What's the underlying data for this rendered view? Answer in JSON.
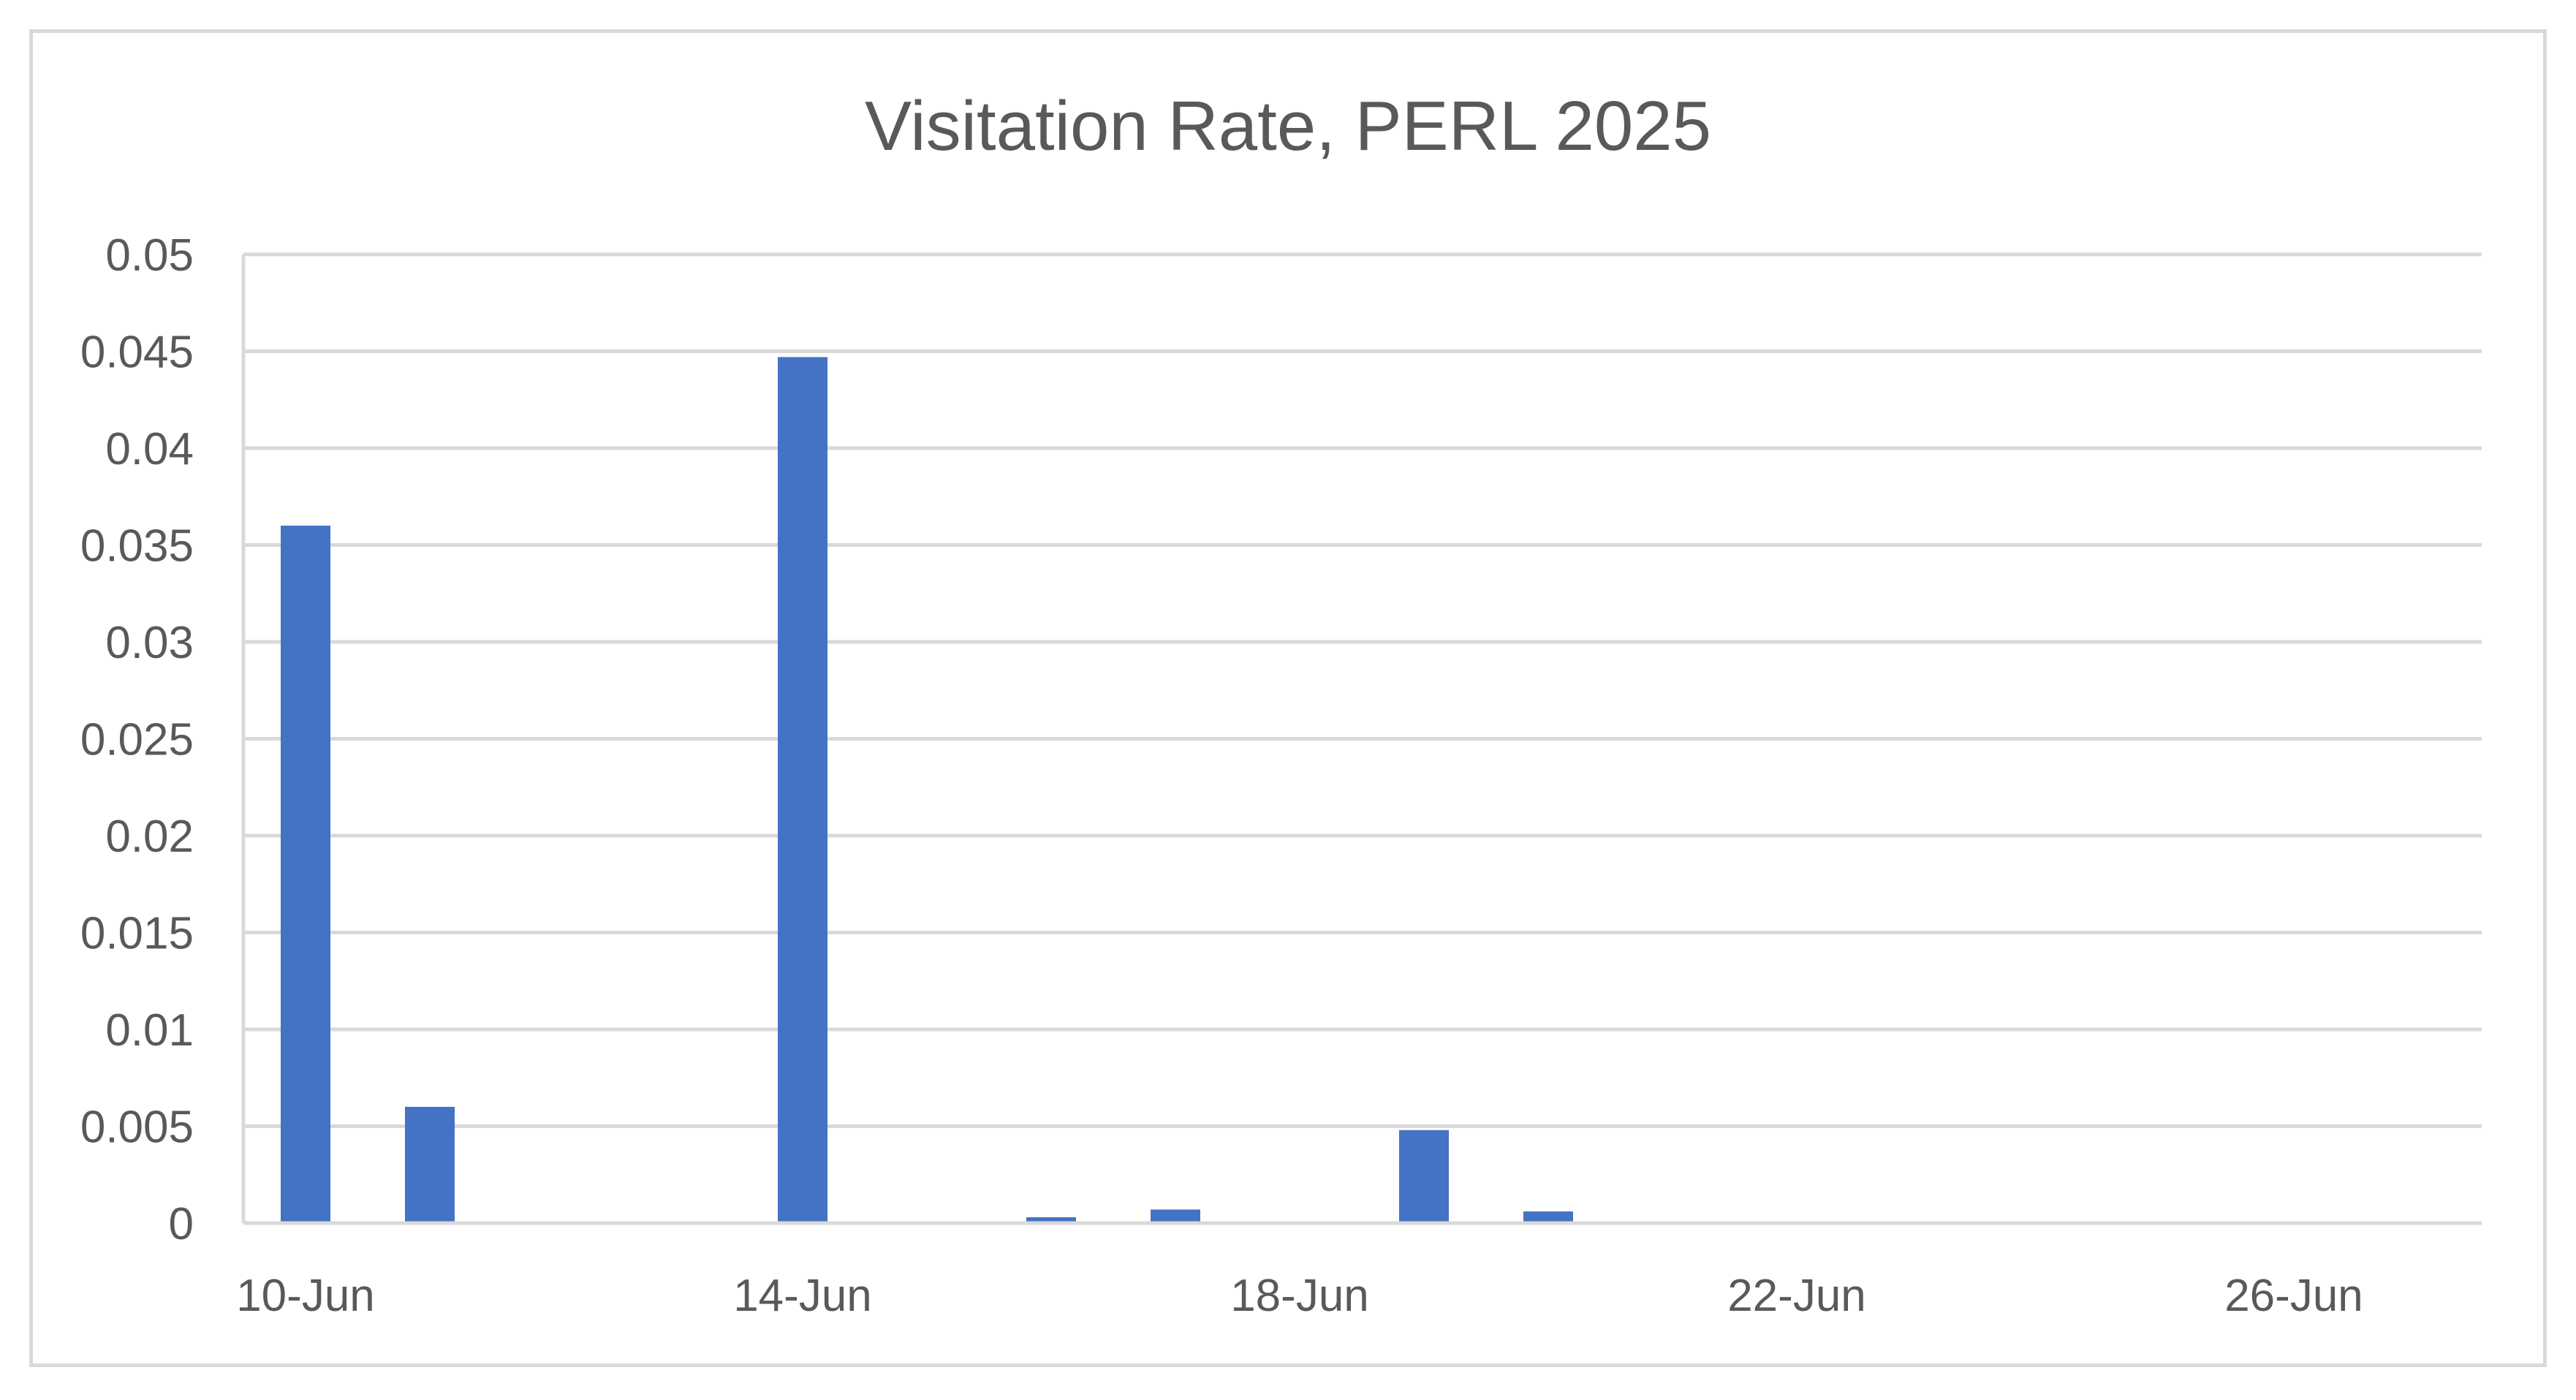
{
  "chart_data": {
    "type": "bar",
    "title": "Visitation Rate, PERL 2025",
    "xlabel": "",
    "ylabel": "",
    "x": [
      "10-Jun",
      "11-Jun",
      "12-Jun",
      "13-Jun",
      "14-Jun",
      "15-Jun",
      "16-Jun",
      "17-Jun",
      "18-Jun",
      "19-Jun",
      "20-Jun",
      "21-Jun",
      "22-Jun",
      "23-Jun",
      "24-Jun",
      "25-Jun",
      "26-Jun",
      "27-Jun"
    ],
    "values": [
      0.036,
      0.006,
      0,
      0,
      0.0447,
      0,
      0.0003,
      0.0007,
      0,
      0.0048,
      0.0006,
      0,
      0,
      0,
      0,
      0,
      0,
      0
    ],
    "ylim": [
      0,
      0.05
    ],
    "y_ticks": [
      "0",
      "0.005",
      "0.01",
      "0.015",
      "0.02",
      "0.025",
      "0.03",
      "0.035",
      "0.04",
      "0.045",
      "0.05"
    ],
    "x_tick_labels": [
      "10-Jun",
      "14-Jun",
      "18-Jun",
      "22-Jun",
      "26-Jun"
    ],
    "grid": true,
    "legend": "none",
    "colors": {
      "bar": "#4472c4",
      "grid": "#d9d9d9",
      "text": "#595959"
    }
  }
}
